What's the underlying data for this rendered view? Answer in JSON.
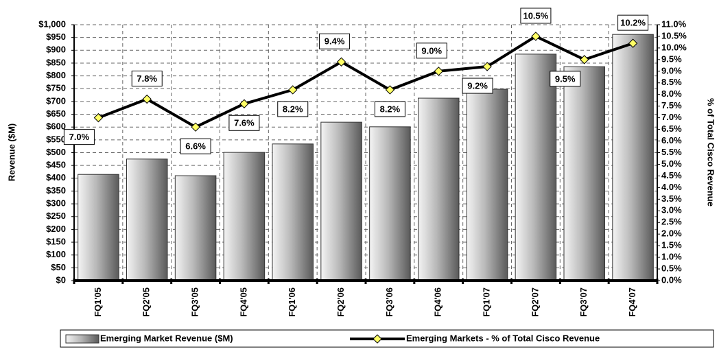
{
  "chart_data": {
    "type": "bar-line",
    "categories": [
      "FQ1'05",
      "FQ2'05",
      "FQ3'05",
      "FQ4'05",
      "FQ1'06",
      "FQ2'06",
      "FQ3'06",
      "FQ4'06",
      "FQ1'07",
      "FQ2'07",
      "FQ3'07",
      "FQ4'07"
    ],
    "series": [
      {
        "name": "Emerging Market Revenue ($M)",
        "type": "bar",
        "color": "#a0a0a0",
        "values": [
          415,
          475,
          410,
          501,
          534,
          619,
          601,
          713,
          748,
          885,
          836,
          962
        ]
      },
      {
        "name": "Emerging Markets - % of Total Cisco Revenue",
        "type": "line",
        "axis": "y2",
        "color": "#000000",
        "marker_color": "#ffff66",
        "values": [
          7.0,
          7.8,
          6.6,
          7.6,
          8.2,
          9.4,
          8.2,
          9.0,
          9.2,
          10.5,
          9.5,
          10.2
        ],
        "value_labels": [
          "7.0%",
          "7.8%",
          "6.6%",
          "7.6%",
          "8.2%",
          "9.4%",
          "8.2%",
          "9.0%",
          "9.2%",
          "10.5%",
          "9.5%",
          "10.2%"
        ]
      }
    ],
    "ylabel": "Revenue ($M)",
    "y2label": "% of Total Cisco Revenue",
    "ylim": [
      0,
      1000
    ],
    "yticks": [
      {
        "value": 0,
        "label": "$0"
      },
      {
        "value": 50,
        "label": "$50"
      },
      {
        "value": 100,
        "label": "$100"
      },
      {
        "value": 150,
        "label": "$150"
      },
      {
        "value": 200,
        "label": "$200"
      },
      {
        "value": 250,
        "label": "$250"
      },
      {
        "value": 300,
        "label": "$300"
      },
      {
        "value": 350,
        "label": "$350"
      },
      {
        "value": 400,
        "label": "$400"
      },
      {
        "value": 450,
        "label": "$450"
      },
      {
        "value": 500,
        "label": "$500"
      },
      {
        "value": 550,
        "label": "$550"
      },
      {
        "value": 600,
        "label": "$600"
      },
      {
        "value": 650,
        "label": "$650"
      },
      {
        "value": 700,
        "label": "$700"
      },
      {
        "value": 750,
        "label": "$750"
      },
      {
        "value": 800,
        "label": "$800"
      },
      {
        "value": 850,
        "label": "$850"
      },
      {
        "value": 900,
        "label": "$900"
      },
      {
        "value": 950,
        "label": "$950"
      },
      {
        "value": 1000,
        "label": "$1,000"
      }
    ],
    "y2lim": [
      0,
      11
    ],
    "y2ticks": [
      {
        "value": 0,
        "label": "0.0%"
      },
      {
        "value": 0.5,
        "label": "0.5%"
      },
      {
        "value": 1,
        "label": "1.0%"
      },
      {
        "value": 1.5,
        "label": "1.5%"
      },
      {
        "value": 2,
        "label": "2.0%"
      },
      {
        "value": 2.5,
        "label": "2.5%"
      },
      {
        "value": 3,
        "label": "3.0%"
      },
      {
        "value": 3.5,
        "label": "3.5%"
      },
      {
        "value": 4,
        "label": "4.0%"
      },
      {
        "value": 4.5,
        "label": "4.5%"
      },
      {
        "value": 5,
        "label": "5.0%"
      },
      {
        "value": 5.5,
        "label": "5.5%"
      },
      {
        "value": 6,
        "label": "6.0%"
      },
      {
        "value": 6.5,
        "label": "6.5%"
      },
      {
        "value": 7,
        "label": "7.0%"
      },
      {
        "value": 7.5,
        "label": "7.5%"
      },
      {
        "value": 8,
        "label": "8.0%"
      },
      {
        "value": 8.5,
        "label": "8.5%"
      },
      {
        "value": 9,
        "label": "9.0%"
      },
      {
        "value": 9.5,
        "label": "9.5%"
      },
      {
        "value": 10,
        "label": "10.0%"
      },
      {
        "value": 10.5,
        "label": "10.5%"
      },
      {
        "value": 11,
        "label": "11.0%"
      }
    ],
    "grid": true
  }
}
